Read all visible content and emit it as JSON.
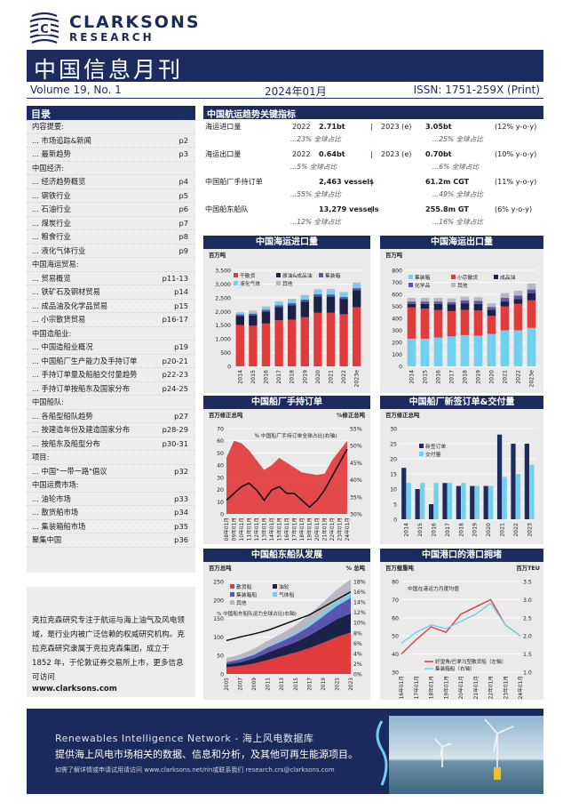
{
  "header": {
    "brand_main": "CLARKSONS",
    "brand_sub": "RESEARCH",
    "title": "中国信息月刊",
    "volume": "Volume 19, No. 1",
    "date": "2024年01月",
    "issn": "ISSN: 1751-259X (Print)"
  },
  "toc": {
    "heading": "目录",
    "rows": [
      {
        "label": "内容提要:",
        "page": ""
      },
      {
        "label": "... 市场追踪&新闻",
        "page": "p2"
      },
      {
        "label": "... 最新趋势",
        "page": "p3"
      },
      {
        "label": "中国经济:",
        "page": ""
      },
      {
        "label": "... 经济趋势概览",
        "page": "p4"
      },
      {
        "label": "... 钢铁行业",
        "page": "p5"
      },
      {
        "label": "... 石油行业",
        "page": "p6"
      },
      {
        "label": "... 煤炭行业",
        "page": "p7"
      },
      {
        "label": "... 粮食行业",
        "page": "p8"
      },
      {
        "label": "... 液化气体行业",
        "page": "p9"
      },
      {
        "label": "中国海运贸易:",
        "page": ""
      },
      {
        "label": "... 贸易概览",
        "page": "p11-13"
      },
      {
        "label": "... 铁矿石及钢材贸易",
        "page": "p14"
      },
      {
        "label": "... 成品油及化学品贸易",
        "page": "p15"
      },
      {
        "label": "... 小宗散货贸易",
        "page": "p16-17"
      },
      {
        "label": "中国造船业:",
        "page": ""
      },
      {
        "label": "... 中国造船业概况",
        "page": "p19"
      },
      {
        "label": "... 中国船厂生产能力及手持订单",
        "page": "p20-21"
      },
      {
        "label": "... 手持订单量及船舶交付量趋势",
        "page": "p22-23"
      },
      {
        "label": "... 手持订单按船东及国家分布",
        "page": "p24-25"
      },
      {
        "label": "中国船队:",
        "page": ""
      },
      {
        "label": "... 各船型船队趋势",
        "page": "p27"
      },
      {
        "label": "... 按建造年份及建造国家分布",
        "page": "p28-29"
      },
      {
        "label": "... 按船东及船型分布",
        "page": "p30-31"
      },
      {
        "label": "项目:",
        "page": ""
      },
      {
        "label": "... 中国\"一带一路\"倡议",
        "page": "p32"
      },
      {
        "label": "中国运费市场:",
        "page": ""
      },
      {
        "label": "... 油轮市场",
        "page": "p33"
      },
      {
        "label": "... 散货船市场",
        "page": "p34"
      },
      {
        "label": "... 集装箱船市场",
        "page": "p35"
      },
      {
        "label": "聚集中国",
        "page": "p36"
      }
    ]
  },
  "about": {
    "text": "克拉克森研究专注于航运与海上油气及风电领域，是行业内被广泛信赖的权威研究机构。克拉克森研究隶属于克拉克森集团，成立于 1852 年，于伦敦证券交易所上市，更多信息可访问",
    "url": "www.clarksons.com"
  },
  "key_indicators": {
    "heading": "中国航运趋势关键指标",
    "rows": [
      {
        "label": "海运进口量",
        "y1": "2022",
        "v1": "2.71bt",
        "y2": "2023 (e)",
        "v2": "3.05bt",
        "chg": "(12% y-o-y)",
        "s1": "...23% 全球占比",
        "s2": "...25% 全球占比"
      },
      {
        "label": "海运出口量",
        "y1": "2022",
        "v1": "0.64bt",
        "y2": "2023 (e)",
        "v2": "0.70bt",
        "chg": "(10% y-o-y)",
        "s1": "...5% 全球占比",
        "s2": "...6% 全球占比"
      },
      {
        "label": "中国船厂手持订单",
        "y1": "",
        "v1": "2,463 vessels",
        "y2": "",
        "v2": "61.2m CGT",
        "chg": "(11% y-o-y)",
        "s1": "...55% 全球占比",
        "s2": "...49% 全球占比"
      },
      {
        "label": "中国船东船队",
        "y1": "",
        "v1": "13,279 vessels",
        "y2": "",
        "v2": "255.8m GT",
        "chg": "(6% y-o-y)",
        "s1": "...12% 全球占比",
        "s2": "...16% 全球占比"
      }
    ]
  },
  "colors": {
    "navy": "#1d2c5e",
    "red": "#e23b3b",
    "cyan": "#6fd0f0",
    "purple": "#5b55b0",
    "grey": "#b8b8c4",
    "dark": "#1c2148"
  },
  "charts": {
    "imports": {
      "title": "中国海运进口量",
      "unit": "百万吨",
      "legend": [
        "干散货",
        "原油&成品油",
        "集装箱",
        "液化气体",
        "其他"
      ],
      "chart_data": {
        "type": "bar",
        "categories": [
          "2014",
          "2015",
          "2016",
          "2017",
          "2018",
          "2019",
          "2020",
          "2021",
          "2022",
          "2023e"
        ],
        "ylim": [
          0,
          3500
        ],
        "yticks": [
          "0",
          "500",
          "1,000",
          "1,500",
          "2,000",
          "2,500",
          "3,000",
          "3,500"
        ],
        "series": [
          {
            "name": "干散货",
            "values": [
              1500,
              1480,
              1560,
              1680,
              1700,
              1790,
              1950,
              1960,
              1900,
              2150
            ]
          },
          {
            "name": "原油&成品油",
            "values": [
              330,
              380,
              440,
              480,
              530,
              570,
              600,
              580,
              560,
              620
            ]
          },
          {
            "name": "集装箱",
            "values": [
              60,
              60,
              65,
              70,
              70,
              70,
              80,
              80,
              70,
              80
            ]
          },
          {
            "name": "液化气体",
            "values": [
              60,
              70,
              80,
              100,
              120,
              130,
              140,
              160,
              140,
              160
            ]
          },
          {
            "name": "其他",
            "values": [
              40,
              40,
              40,
              40,
              40,
              40,
              40,
              40,
              40,
              40
            ]
          }
        ]
      }
    },
    "exports": {
      "title": "中国海运出口量",
      "unit": "百万吨",
      "legend": [
        "集装箱",
        "小宗散货",
        "成品油",
        "化学品",
        "其他"
      ],
      "chart_data": {
        "type": "bar",
        "categories": [
          "2014",
          "2015",
          "2016",
          "2017",
          "2018",
          "2019",
          "2020",
          "2021",
          "2022",
          "2023e"
        ],
        "ylim": [
          0,
          800
        ],
        "yticks": [
          "0",
          "100",
          "200",
          "300",
          "400",
          "500",
          "600",
          "700",
          "800"
        ],
        "series": [
          {
            "name": "集装箱",
            "values": [
              230,
              230,
              240,
              250,
              260,
              255,
              270,
              300,
              300,
              320
            ]
          },
          {
            "name": "小宗散货",
            "values": [
              260,
              250,
              230,
              210,
              210,
              210,
              150,
              200,
              220,
              230
            ]
          },
          {
            "name": "成品油",
            "values": [
              30,
              40,
              50,
              55,
              55,
              55,
              50,
              40,
              40,
              60
            ]
          },
          {
            "name": "化学品",
            "values": [
              20,
              20,
              20,
              20,
              25,
              25,
              25,
              30,
              30,
              30
            ]
          },
          {
            "name": "其他",
            "values": [
              30,
              30,
              30,
              30,
              30,
              30,
              30,
              40,
              40,
              50
            ]
          }
        ]
      }
    },
    "orderbook": {
      "title": "中国船厂手持订单",
      "unit_left": "百万修正总吨",
      "unit_right": "%修正总吨",
      "annotation": "% 中国船厂手持订单全球占比(右轴)",
      "chart_data": {
        "type": "area",
        "x": [
          "08年01月",
          "09年01月",
          "10年01月",
          "11年01月",
          "12年01月",
          "13年01月",
          "14年01月",
          "15年01月",
          "16年01月",
          "17年01月",
          "18年01月",
          "19年01月",
          "20年01月",
          "21年01月",
          "22年01月",
          "23年01月",
          "24年01月"
        ],
        "series": [
          {
            "name": "百万修正总吨",
            "axis": "left",
            "values": [
              46,
              60,
              58,
              52,
              44,
              36,
              40,
              46,
              42,
              38,
              34,
              33,
              32,
              33,
              44,
              52,
              60
            ]
          },
          {
            "name": "% 中国船厂手持订单全球占比(右轴)",
            "axis": "right",
            "values": [
              34,
              36,
              38,
              39,
              37,
              34,
              37,
              38,
              36,
              36,
              34,
              32,
              34,
              37,
              41,
              45,
              49
            ]
          }
        ],
        "ylim_left": [
          0,
          70
        ],
        "ylim_right": [
          30,
          55
        ],
        "yticks_left": [
          "0",
          "10",
          "20",
          "30",
          "40",
          "50",
          "60",
          "70"
        ],
        "yticks_right": [
          "30%",
          "35%",
          "40%",
          "45%",
          "50%",
          "55%"
        ]
      }
    },
    "contracts": {
      "title": "中国船厂新签订单&交付量",
      "unit": "百万修正总吨",
      "legend": [
        "新签订单",
        "交付量"
      ],
      "chart_data": {
        "type": "bar",
        "categories": [
          "2014",
          "2015",
          "2016",
          "2017",
          "2018",
          "2019",
          "2020",
          "2021",
          "2022",
          "2023"
        ],
        "ylim": [
          0,
          30
        ],
        "yticks": [
          "0",
          "5",
          "10",
          "15",
          "20",
          "25",
          "30"
        ],
        "series": [
          {
            "name": "新签订单",
            "values": [
              17,
              10,
              5,
              12,
              11,
              11,
              11,
              28,
              25,
              25
            ]
          },
          {
            "name": "交付量",
            "values": [
              12,
              12,
              12,
              12,
              12,
              11,
              11,
              14,
              15,
              18
            ]
          }
        ]
      }
    },
    "fleet": {
      "title": "中国船东船队发展",
      "unit_left": "百万总吨",
      "unit_right": "% 总吨",
      "legend": [
        "散货船",
        "油轮",
        "集装箱船",
        "气体船",
        "其他"
      ],
      "annotation": "% 中国船东船队运力全球占比(右轴)",
      "chart_data": {
        "type": "area",
        "x": [
          "2005",
          "2007",
          "2009",
          "2011",
          "2013",
          "2015",
          "2017",
          "2019",
          "2021",
          "2023"
        ],
        "series": [
          {
            "name": "散货船",
            "values": [
              18,
              22,
              28,
              38,
              48,
              58,
              70,
              84,
              100,
              112
            ]
          },
          {
            "name": "油轮",
            "values": [
              8,
              10,
              14,
              20,
              24,
              28,
              34,
              42,
              48,
              52
            ]
          },
          {
            "name": "集装箱船",
            "values": [
              6,
              8,
              10,
              14,
              16,
              20,
              24,
              30,
              36,
              42
            ]
          },
          {
            "name": "气体船",
            "values": [
              1,
              1,
              2,
              2,
              3,
              4,
              6,
              8,
              10,
              12
            ]
          },
          {
            "name": "其他",
            "values": [
              10,
              12,
              14,
              16,
              18,
              22,
              26,
              30,
              34,
              38
            ]
          },
          {
            "name": "% 中国船东船队运力全球占比(右轴)",
            "axis": "right",
            "values": [
              6.5,
              7.2,
              7.8,
              8.5,
              9.5,
              10.5,
              11.5,
              13,
              14.5,
              16
            ]
          }
        ],
        "ylim_left": [
          0,
          250
        ],
        "ylim_right": [
          0,
          18
        ],
        "yticks_left": [
          "0",
          "50",
          "100",
          "150",
          "200",
          "250"
        ],
        "yticks_right": [
          "0%",
          "2%",
          "4%",
          "6%",
          "8%",
          "10%",
          "12%",
          "14%",
          "16%",
          "18%"
        ]
      }
    },
    "congestion": {
      "title": "中国港口的港口拥堵",
      "unit_left": "百万载重吨",
      "unit_right": "百万TEU",
      "annotation": "中国在港运力月度均值",
      "legend": [
        "好望角/巴拿马型散货船（左轴）",
        "集装箱船（右轴）"
      ],
      "chart_data": {
        "type": "line",
        "x": [
          "16年01月",
          "17年01月",
          "18年01月",
          "19年01月",
          "20年01月",
          "21年01月",
          "22年01月",
          "23年01月",
          "24年01月"
        ],
        "series": [
          {
            "name": "好望角/巴拿马型散货船（左轴）",
            "axis": "left",
            "values": [
              40,
              48,
              55,
              52,
              62,
              66,
              70,
              56,
              50
            ]
          },
          {
            "name": "集装箱船（右轴）",
            "axis": "right",
            "values": [
              1.8,
              2.1,
              2.3,
              2.2,
              2.4,
              2.6,
              2.9,
              2.3,
              2.0
            ]
          }
        ],
        "ylim_left": [
          30,
          80
        ],
        "ylim_right": [
          1.0,
          3.5
        ],
        "yticks_left": [
          "30",
          "40",
          "50",
          "60",
          "70",
          "80"
        ],
        "yticks_right": [
          "1.0",
          "1.5",
          "2.0",
          "2.5",
          "3.0",
          "3.5"
        ]
      }
    }
  },
  "banner": {
    "line1": "Renewables Intelligence Network - 海上风电数据库",
    "line2": "提供海上风电市场相关的数据、信息和分析，及其他可再生能源项目。",
    "line3": "如需了解详情或申请试用请访问 www.clarksons.net/rin或联系我们 research.crs@clarksons.com"
  }
}
